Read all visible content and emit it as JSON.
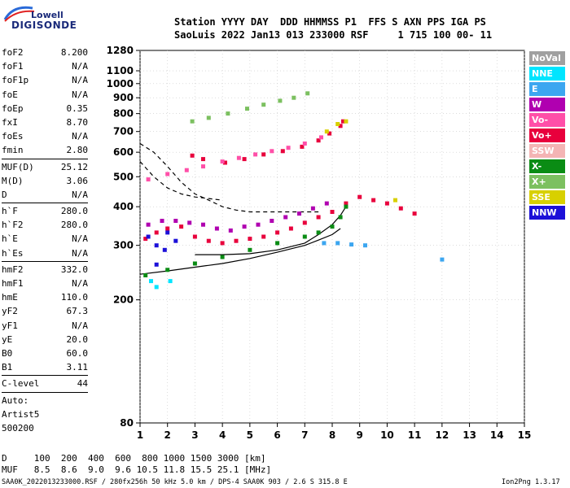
{
  "logo": {
    "top": "Lowell",
    "bottom": "DIGISONDE"
  },
  "header": {
    "line1": "Station YYYY DAY  DDD HHMMSS P1  FFS S AXN PPS IGA PS",
    "line2": "SaoLuis 2022 Jan13 013 233000 RSF     1 715 100 00- 11"
  },
  "params": [
    {
      "name": "foF2",
      "value": "8.200"
    },
    {
      "name": "foF1",
      "value": "N/A"
    },
    {
      "name": "foF1p",
      "value": "N/A"
    },
    {
      "name": "foE",
      "value": "N/A"
    },
    {
      "name": "foEp",
      "value": "0.35"
    },
    {
      "name": "fxI",
      "value": "8.70"
    },
    {
      "name": "foEs",
      "value": "N/A"
    },
    {
      "name": "fmin",
      "value": "2.80"
    },
    {
      "sep": true
    },
    {
      "name": "MUF(D)",
      "value": "25.12"
    },
    {
      "name": "M(D)",
      "value": "3.06"
    },
    {
      "name": "D",
      "value": "N/A"
    },
    {
      "sep": true
    },
    {
      "name": "h`F",
      "value": "280.0"
    },
    {
      "name": "h`F2",
      "value": "280.0"
    },
    {
      "name": "h`E",
      "value": "N/A"
    },
    {
      "name": "h`Es",
      "value": "N/A"
    },
    {
      "sep": true
    },
    {
      "name": "hmF2",
      "value": "332.0"
    },
    {
      "name": "hmF1",
      "value": "N/A"
    },
    {
      "name": "hmE",
      "value": "110.0"
    },
    {
      "name": "yF2",
      "value": "67.3"
    },
    {
      "name": "yF1",
      "value": "N/A"
    },
    {
      "name": "yE",
      "value": "20.0"
    },
    {
      "name": "B0",
      "value": "60.0"
    },
    {
      "name": "B1",
      "value": "3.11"
    },
    {
      "sep": true
    },
    {
      "name": "C-level",
      "value": "44"
    },
    {
      "sep": true
    },
    {
      "name": "Auto:",
      "value": ""
    },
    {
      "name": "Artist5",
      "value": ""
    },
    {
      "name": "500200",
      "value": ""
    }
  ],
  "legend": [
    {
      "label": "NoVal",
      "color": "#a0a0a0"
    },
    {
      "label": "NNE",
      "color": "#00e5ff"
    },
    {
      "label": "E",
      "color": "#3ca6f0"
    },
    {
      "label": "W",
      "color": "#b000b0"
    },
    {
      "label": "Vo-",
      "color": "#ff4fa8"
    },
    {
      "label": "Vo+",
      "color": "#e8003c"
    },
    {
      "label": "SSW",
      "color": "#f4b4b4"
    },
    {
      "label": "X-",
      "color": "#0a8c14"
    },
    {
      "label": "X+",
      "color": "#7cc060"
    },
    {
      "label": "SSE",
      "color": "#d8d000"
    },
    {
      "label": "NNW",
      "color": "#1c10d8"
    }
  ],
  "footer": {
    "line1": "D     100  200  400  600  800 1000 1500 3000 [km]",
    "line2": "MUF   8.5  8.6  9.0  9.6 10.5 11.8 15.5 25.1 [MHz]",
    "line3": "SAA0K_2022013233000.RSF / 280fx256h 50 kHz 5.0 km / DPS-4 SAA0K 903 / 2.6 S 315.8 E",
    "version": "Ion2Png 1.3.17"
  },
  "chart_data": {
    "type": "scatter",
    "title": "",
    "xlabel": "",
    "ylabel": "",
    "xlim": [
      1,
      15
    ],
    "ylim": [
      80,
      1280
    ],
    "y_scale": "log",
    "x_ticks": [
      1,
      2,
      3,
      4,
      5,
      6,
      7,
      8,
      9,
      10,
      11,
      12,
      13,
      14,
      15
    ],
    "y_ticks": [
      80,
      200,
      300,
      400,
      500,
      600,
      700,
      800,
      900,
      1000,
      1100,
      1280
    ],
    "grid": true,
    "series": [
      {
        "color": "#e8003c",
        "points": [
          [
            2.9,
            585
          ],
          [
            3.3,
            570
          ],
          [
            4.1,
            555
          ],
          [
            4.8,
            570
          ],
          [
            5.5,
            590
          ],
          [
            6.2,
            605
          ],
          [
            6.9,
            625
          ],
          [
            7.5,
            655
          ],
          [
            7.9,
            690
          ],
          [
            8.3,
            730
          ],
          [
            8.4,
            755
          ]
        ]
      },
      {
        "color": "#ff4fa8",
        "points": [
          [
            1.3,
            490
          ],
          [
            2,
            510
          ],
          [
            2.7,
            525
          ],
          [
            3.3,
            540
          ],
          [
            4,
            560
          ],
          [
            4.6,
            575
          ],
          [
            5.2,
            590
          ],
          [
            5.8,
            605
          ],
          [
            6.4,
            620
          ],
          [
            7,
            640
          ],
          [
            7.6,
            670
          ]
        ]
      },
      {
        "color": "#7cc060",
        "points": [
          [
            2.9,
            755
          ],
          [
            3.5,
            775
          ],
          [
            4.2,
            800
          ],
          [
            4.9,
            830
          ],
          [
            5.5,
            855
          ],
          [
            6.1,
            880
          ],
          [
            6.6,
            900
          ],
          [
            7.1,
            930
          ]
        ]
      },
      {
        "color": "#e8003c",
        "points": [
          [
            1.2,
            315
          ],
          [
            1.6,
            330
          ],
          [
            2,
            340
          ],
          [
            2.5,
            345
          ],
          [
            3,
            320
          ],
          [
            3.5,
            310
          ],
          [
            4,
            305
          ],
          [
            4.5,
            310
          ],
          [
            5,
            315
          ],
          [
            5.5,
            320
          ],
          [
            6,
            330
          ],
          [
            6.5,
            340
          ],
          [
            7,
            355
          ],
          [
            7.5,
            370
          ],
          [
            8,
            385
          ],
          [
            8.5,
            410
          ],
          [
            9,
            430
          ],
          [
            9.5,
            420
          ],
          [
            10,
            410
          ],
          [
            10.5,
            395
          ],
          [
            11,
            380
          ]
        ]
      },
      {
        "color": "#b000b0",
        "points": [
          [
            1.3,
            350
          ],
          [
            1.8,
            360
          ],
          [
            2.3,
            360
          ],
          [
            2.8,
            355
          ],
          [
            3.3,
            350
          ],
          [
            3.8,
            340
          ],
          [
            4.3,
            335
          ],
          [
            4.8,
            345
          ],
          [
            5.3,
            350
          ],
          [
            5.8,
            360
          ],
          [
            6.3,
            370
          ],
          [
            6.8,
            380
          ],
          [
            7.3,
            395
          ],
          [
            7.8,
            410
          ]
        ]
      },
      {
        "color": "#0a8c14",
        "points": [
          [
            1.2,
            240
          ],
          [
            2,
            250
          ],
          [
            3,
            262
          ],
          [
            4,
            275
          ],
          [
            5,
            290
          ],
          [
            6,
            305
          ],
          [
            7,
            320
          ],
          [
            7.5,
            330
          ],
          [
            8,
            345
          ],
          [
            8.3,
            370
          ],
          [
            8.5,
            400
          ]
        ]
      },
      {
        "color": "#1c10d8",
        "points": [
          [
            1.3,
            320
          ],
          [
            1.6,
            300
          ],
          [
            2,
            330
          ],
          [
            2.3,
            310
          ],
          [
            1.9,
            290
          ],
          [
            1.6,
            260
          ]
        ]
      },
      {
        "color": "#3ca6f0",
        "points": [
          [
            7.7,
            305
          ],
          [
            8.2,
            305
          ],
          [
            8.7,
            302
          ],
          [
            9.2,
            300
          ],
          [
            12.0,
            270
          ]
        ]
      },
      {
        "color": "#00e5ff",
        "points": [
          [
            1.6,
            220
          ],
          [
            2.1,
            230
          ],
          [
            1.4,
            230
          ]
        ]
      },
      {
        "color": "#d8d000",
        "points": [
          [
            8.5,
            755
          ],
          [
            8.2,
            740
          ],
          [
            7.8,
            700
          ],
          [
            10.3,
            420
          ]
        ]
      }
    ],
    "curves": [
      {
        "style": "solid",
        "points": [
          [
            1,
            242
          ],
          [
            2,
            248
          ],
          [
            3,
            255
          ],
          [
            4,
            262
          ],
          [
            5,
            272
          ],
          [
            6,
            285
          ],
          [
            7,
            300
          ],
          [
            7.5,
            312
          ],
          [
            8,
            325
          ],
          [
            8.3,
            340
          ]
        ]
      },
      {
        "style": "solid",
        "points": [
          [
            3,
            280
          ],
          [
            4,
            280
          ],
          [
            5,
            282
          ],
          [
            6,
            290
          ],
          [
            7,
            305
          ],
          [
            7.5,
            325
          ],
          [
            8,
            350
          ],
          [
            8.3,
            375
          ],
          [
            8.5,
            400
          ]
        ]
      },
      {
        "style": "dashed",
        "points": [
          [
            1,
            640
          ],
          [
            1.5,
            600
          ],
          [
            2,
            540
          ],
          [
            2.5,
            480
          ],
          [
            3,
            440
          ],
          [
            3.5,
            420
          ],
          [
            4,
            400
          ],
          [
            4.5,
            390
          ],
          [
            5,
            385
          ],
          [
            6,
            385
          ],
          [
            7,
            385
          ],
          [
            7.5,
            385
          ]
        ]
      },
      {
        "style": "dashed",
        "points": [
          [
            1,
            560
          ],
          [
            1.5,
            500
          ],
          [
            2,
            460
          ],
          [
            2.5,
            440
          ],
          [
            3,
            430
          ],
          [
            3.5,
            425
          ],
          [
            4,
            420
          ]
        ]
      }
    ]
  }
}
